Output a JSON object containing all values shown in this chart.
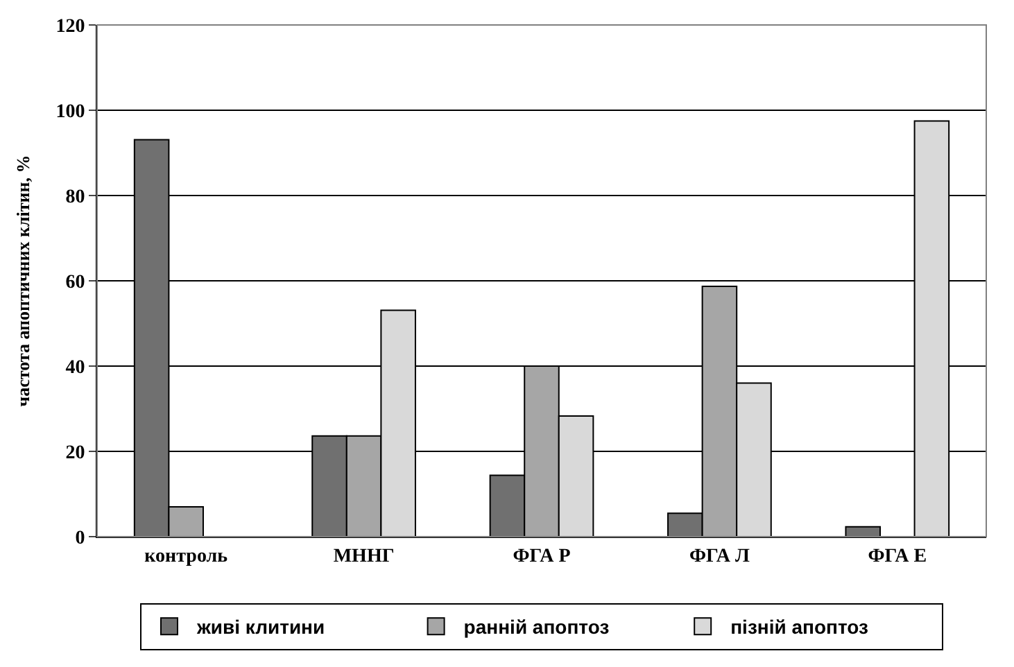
{
  "chart_data": {
    "type": "bar",
    "ylabel": "частота апоптичних клітин, %",
    "categories": [
      "контроль",
      "МННГ",
      "ФГА Р",
      "ФГА Л",
      "ФГА Е"
    ],
    "series": [
      {
        "name": "живі клитини",
        "color": "#707070",
        "values": [
          93.1,
          23.6,
          14.4,
          5.5,
          2.3
        ]
      },
      {
        "name": "ранній апоптоз",
        "color": "#a6a6a6",
        "values": [
          7.0,
          23.6,
          40.0,
          58.7,
          null
        ]
      },
      {
        "name": "пізній апоптоз",
        "color": "#d9d9d9",
        "values": [
          null,
          53.1,
          28.3,
          36.0,
          97.5
        ]
      }
    ],
    "ylim": [
      0,
      120
    ],
    "yticks": [
      0,
      20,
      40,
      60,
      80,
      100,
      120
    ],
    "grid": "y",
    "legend": "bottom"
  }
}
